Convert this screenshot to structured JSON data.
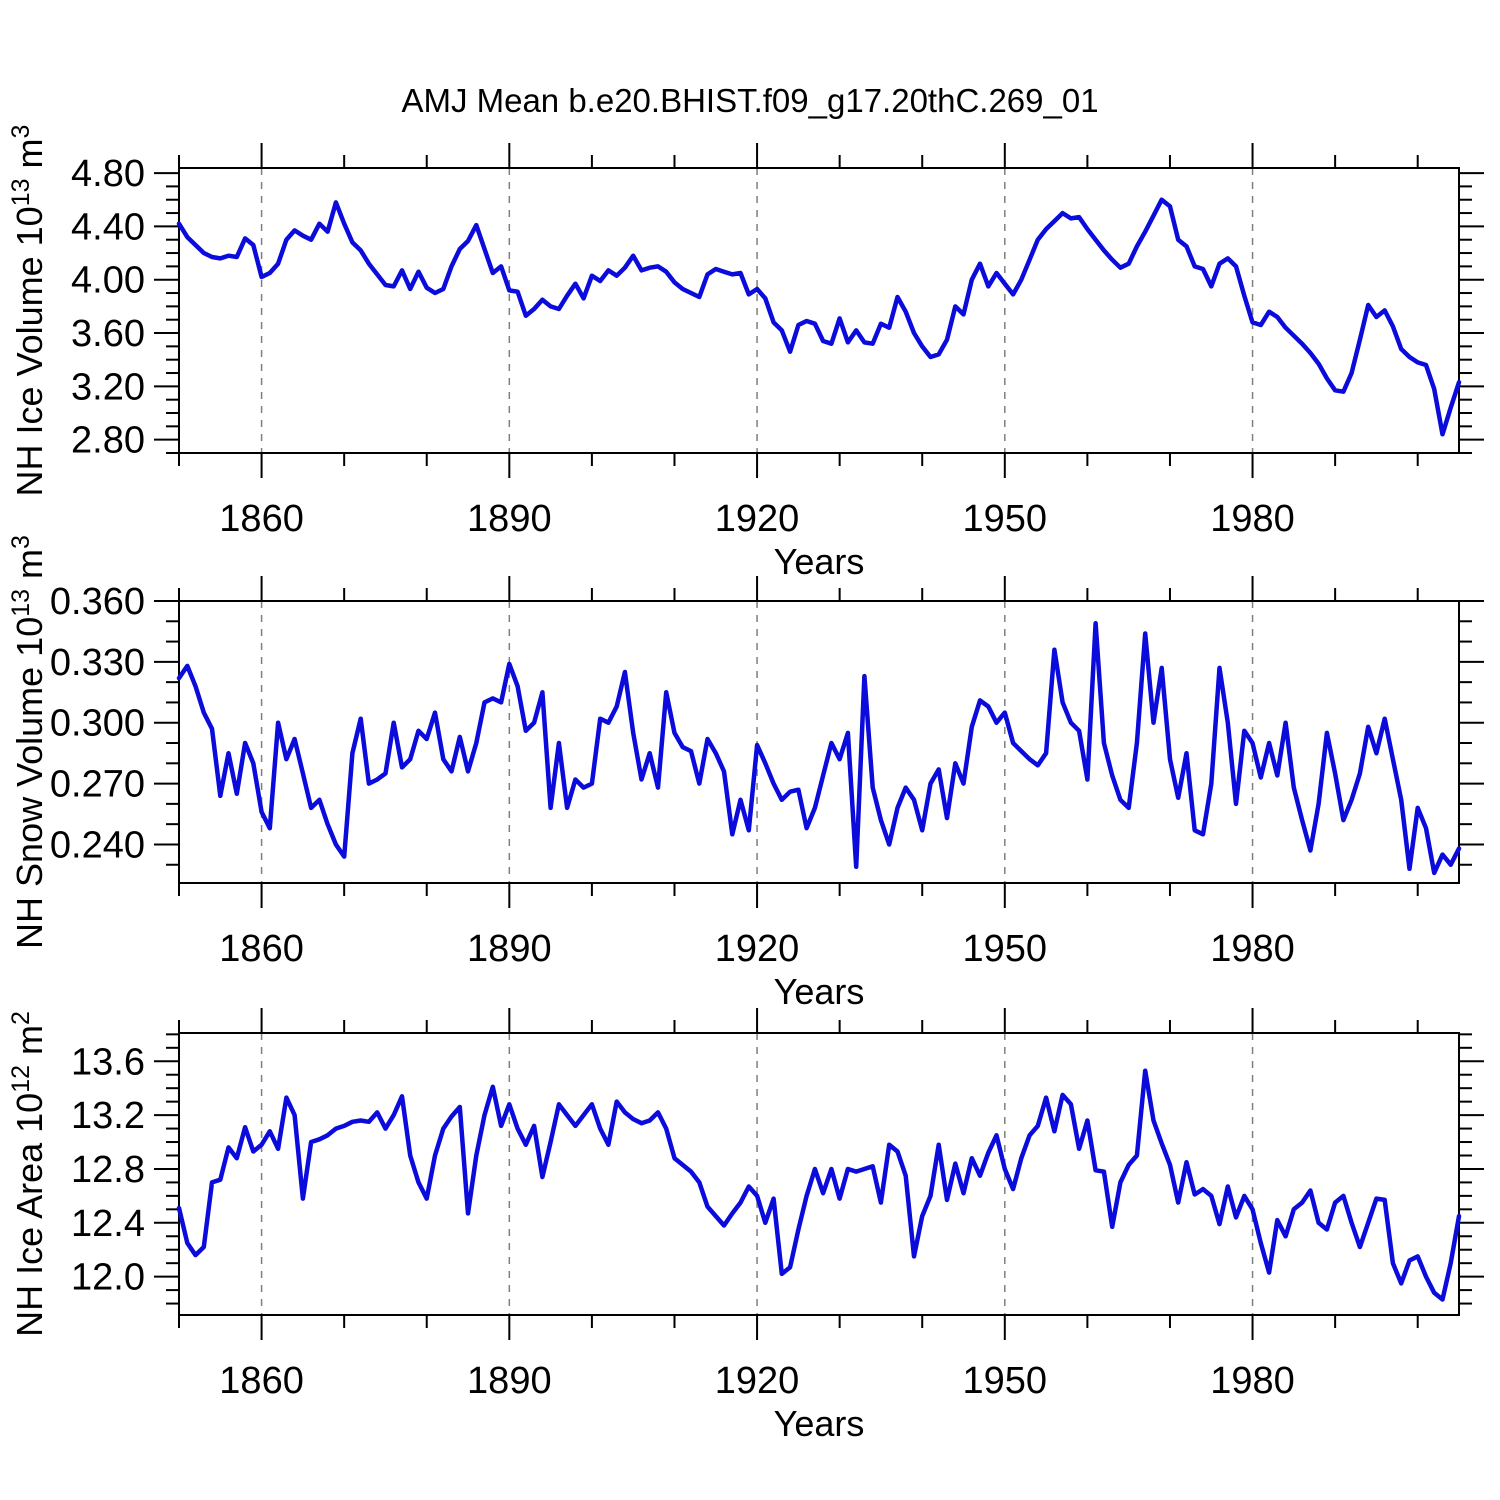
{
  "title": "AMJ Mean b.e20.BHIST.f09_g17.20thC.269_01",
  "colors": {
    "line": "#0b0bdb",
    "grid": "#7f7f7f",
    "frame": "#000000",
    "text": "#000000"
  },
  "chart_data": [
    {
      "id": "nh-ice-volume",
      "type": "line",
      "ylabel": "NH Ice Volume 10^13 m^3",
      "ylabel_parts": {
        "name": "NH Ice Volume 10",
        "power_exp": "13",
        "unit": " m",
        "unit_exp": "3"
      },
      "xlabel": "Years",
      "xlim": [
        1850,
        2005
      ],
      "ylim": [
        2.7,
        4.838
      ],
      "xticks": [
        1860,
        1890,
        1920,
        1950,
        1980
      ],
      "xtick_labels": [
        "1860",
        "1890",
        "1920",
        "1950",
        "1980"
      ],
      "x_minor_start": 1850,
      "x_minor_step": 10,
      "yticks": [
        2.8,
        3.2,
        3.6,
        4.0,
        4.4,
        4.8
      ],
      "ytick_labels": [
        "2.80",
        "3.20",
        "3.60",
        "4.00",
        "4.40",
        "4.80"
      ],
      "y_minor_start": 2.7,
      "y_minor_step": 0.1,
      "grid": "vertical-dashed-at-major-x",
      "legend": "none",
      "x_start": 1850,
      "x_step": 1,
      "values": [
        4.42,
        4.32,
        4.26,
        4.2,
        4.17,
        4.16,
        4.18,
        4.17,
        4.31,
        4.26,
        4.02,
        4.05,
        4.12,
        4.3,
        4.37,
        4.33,
        4.3,
        4.42,
        4.36,
        4.58,
        4.42,
        4.28,
        4.22,
        4.12,
        4.04,
        3.96,
        3.95,
        4.07,
        3.93,
        4.06,
        3.94,
        3.9,
        3.93,
        4.1,
        4.23,
        4.29,
        4.41,
        4.23,
        4.05,
        4.1,
        3.92,
        3.91,
        3.73,
        3.78,
        3.85,
        3.8,
        3.78,
        3.88,
        3.97,
        3.86,
        4.03,
        3.99,
        4.07,
        4.03,
        4.09,
        4.18,
        4.07,
        4.09,
        4.1,
        4.06,
        3.98,
        3.93,
        3.9,
        3.87,
        4.04,
        4.08,
        4.06,
        4.04,
        4.05,
        3.89,
        3.93,
        3.86,
        3.68,
        3.62,
        3.46,
        3.66,
        3.69,
        3.67,
        3.54,
        3.52,
        3.71,
        3.53,
        3.62,
        3.53,
        3.52,
        3.67,
        3.64,
        3.87,
        3.76,
        3.6,
        3.5,
        3.42,
        3.44,
        3.55,
        3.8,
        3.74,
        4.0,
        4.12,
        3.95,
        4.05,
        3.97,
        3.89,
        4.0,
        4.15,
        4.3,
        4.38,
        4.44,
        4.5,
        4.46,
        4.47,
        4.38,
        4.3,
        4.22,
        4.15,
        4.09,
        4.12,
        4.25,
        4.36,
        4.48,
        4.6,
        4.55,
        4.3,
        4.25,
        4.1,
        4.08,
        3.95,
        4.12,
        4.16,
        4.1,
        3.88,
        3.68,
        3.66,
        3.76,
        3.72,
        3.64,
        3.58,
        3.52,
        3.45,
        3.37,
        3.26,
        3.17,
        3.16,
        3.3,
        3.55,
        3.81,
        3.72,
        3.77,
        3.65,
        3.48,
        3.42,
        3.38,
        3.36,
        3.18,
        2.84,
        3.04,
        3.23
      ]
    },
    {
      "id": "nh-snow-volume",
      "type": "line",
      "ylabel": "NH Snow Volume 10^13 m^3",
      "ylabel_parts": {
        "name": "NH Snow Volume 10",
        "power_exp": "13",
        "unit": " m",
        "unit_exp": "3"
      },
      "xlabel": "Years",
      "xlim": [
        1850,
        2005
      ],
      "ylim": [
        0.221,
        0.36
      ],
      "xticks": [
        1860,
        1890,
        1920,
        1950,
        1980
      ],
      "xtick_labels": [
        "1860",
        "1890",
        "1920",
        "1950",
        "1980"
      ],
      "x_minor_start": 1850,
      "x_minor_step": 10,
      "yticks": [
        0.24,
        0.27,
        0.3,
        0.33,
        0.36
      ],
      "ytick_labels": [
        "0.240",
        "0.270",
        "0.300",
        "0.330",
        "0.360"
      ],
      "y_minor_start": 0.23,
      "y_minor_step": 0.01,
      "grid": "vertical-dashed-at-major-x",
      "legend": "none",
      "x_start": 1850,
      "x_step": 1,
      "values": [
        0.322,
        0.328,
        0.318,
        0.305,
        0.297,
        0.264,
        0.285,
        0.265,
        0.29,
        0.28,
        0.256,
        0.248,
        0.3,
        0.282,
        0.292,
        0.275,
        0.258,
        0.262,
        0.25,
        0.24,
        0.234,
        0.285,
        0.302,
        0.27,
        0.272,
        0.275,
        0.3,
        0.278,
        0.282,
        0.296,
        0.292,
        0.305,
        0.282,
        0.276,
        0.293,
        0.276,
        0.29,
        0.31,
        0.312,
        0.31,
        0.329,
        0.318,
        0.296,
        0.3,
        0.315,
        0.258,
        0.29,
        0.258,
        0.272,
        0.268,
        0.27,
        0.302,
        0.3,
        0.308,
        0.325,
        0.295,
        0.272,
        0.285,
        0.268,
        0.315,
        0.295,
        0.288,
        0.286,
        0.27,
        0.292,
        0.285,
        0.276,
        0.245,
        0.262,
        0.247,
        0.289,
        0.28,
        0.27,
        0.262,
        0.266,
        0.267,
        0.248,
        0.258,
        0.274,
        0.29,
        0.282,
        0.295,
        0.229,
        0.323,
        0.268,
        0.252,
        0.24,
        0.258,
        0.268,
        0.262,
        0.247,
        0.27,
        0.277,
        0.253,
        0.28,
        0.27,
        0.298,
        0.311,
        0.308,
        0.3,
        0.305,
        0.29,
        0.286,
        0.282,
        0.279,
        0.285,
        0.336,
        0.31,
        0.3,
        0.296,
        0.272,
        0.349,
        0.29,
        0.274,
        0.262,
        0.258,
        0.29,
        0.344,
        0.3,
        0.327,
        0.282,
        0.263,
        0.285,
        0.247,
        0.245,
        0.27,
        0.327,
        0.3,
        0.26,
        0.296,
        0.29,
        0.273,
        0.29,
        0.274,
        0.3,
        0.268,
        0.252,
        0.237,
        0.26,
        0.295,
        0.275,
        0.252,
        0.262,
        0.275,
        0.298,
        0.285,
        0.302,
        0.282,
        0.262,
        0.228,
        0.258,
        0.248,
        0.226,
        0.235,
        0.23,
        0.238
      ]
    },
    {
      "id": "nh-ice-area",
      "type": "line",
      "ylabel": "NH Ice Area 10^12 m^2",
      "ylabel_parts": {
        "name": "NH Ice Area 10",
        "power_exp": "12",
        "unit": " m",
        "unit_exp": "2"
      },
      "xlabel": "Years",
      "xlim": [
        1850,
        2005
      ],
      "ylim": [
        11.715,
        13.81
      ],
      "xticks": [
        1860,
        1890,
        1920,
        1950,
        1980
      ],
      "xtick_labels": [
        "1860",
        "1890",
        "1920",
        "1950",
        "1980"
      ],
      "x_minor_start": 1850,
      "x_minor_step": 10,
      "yticks": [
        12.0,
        12.4,
        12.8,
        13.2,
        13.6
      ],
      "ytick_labels": [
        "12.0",
        "12.4",
        "12.8",
        "13.2",
        "13.6"
      ],
      "y_minor_start": 11.8,
      "y_minor_step": 0.1,
      "grid": "vertical-dashed-at-major-x",
      "legend": "none",
      "x_start": 1850,
      "x_step": 1,
      "values": [
        12.51,
        12.25,
        12.16,
        12.22,
        12.7,
        12.72,
        12.96,
        12.88,
        13.11,
        12.93,
        12.98,
        13.08,
        12.95,
        13.33,
        13.2,
        12.58,
        13.0,
        13.02,
        13.05,
        13.1,
        13.12,
        13.15,
        13.16,
        13.15,
        13.22,
        13.1,
        13.2,
        13.34,
        12.9,
        12.7,
        12.58,
        12.9,
        13.1,
        13.19,
        13.26,
        12.47,
        12.9,
        13.2,
        13.41,
        13.12,
        13.28,
        13.1,
        12.98,
        13.12,
        12.74,
        13.0,
        13.28,
        13.2,
        13.12,
        13.2,
        13.28,
        13.1,
        12.98,
        13.3,
        13.22,
        13.17,
        13.14,
        13.16,
        13.22,
        13.1,
        12.88,
        12.83,
        12.78,
        12.7,
        12.52,
        12.45,
        12.38,
        12.47,
        12.55,
        12.67,
        12.6,
        12.4,
        12.58,
        12.02,
        12.07,
        12.35,
        12.6,
        12.8,
        12.62,
        12.8,
        12.58,
        12.8,
        12.78,
        12.8,
        12.82,
        12.55,
        12.98,
        12.93,
        12.75,
        12.15,
        12.45,
        12.6,
        12.98,
        12.57,
        12.84,
        12.62,
        12.88,
        12.75,
        12.92,
        13.05,
        12.8,
        12.65,
        12.88,
        13.05,
        13.12,
        13.33,
        13.08,
        13.35,
        13.28,
        12.95,
        13.16,
        12.79,
        12.78,
        12.37,
        12.7,
        12.83,
        12.9,
        13.53,
        13.16,
        12.99,
        12.83,
        12.55,
        12.85,
        12.61,
        12.65,
        12.6,
        12.39,
        12.67,
        12.44,
        12.6,
        12.5,
        12.25,
        12.03,
        12.42,
        12.3,
        12.5,
        12.55,
        12.64,
        12.4,
        12.35,
        12.55,
        12.6,
        12.4,
        12.22,
        12.4,
        12.58,
        12.57,
        12.1,
        11.95,
        12.12,
        12.15,
        12.0,
        11.88,
        11.83,
        12.1,
        12.45
      ]
    }
  ]
}
